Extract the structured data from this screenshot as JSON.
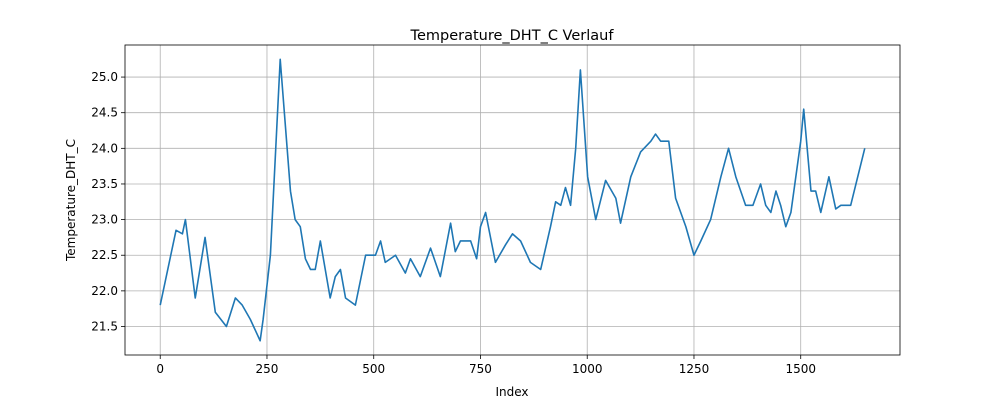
{
  "chart_data": {
    "type": "line",
    "title": "Temperature_DHT_C Verlauf",
    "x_label": "Index",
    "y_label": "Temperature_DHT_C",
    "x": [
      0,
      37,
      52,
      59,
      82,
      105,
      129,
      155,
      176,
      192,
      211,
      234,
      241,
      258,
      281,
      305,
      316,
      328,
      340,
      352,
      363,
      375,
      398,
      410,
      422,
      434,
      457,
      481,
      504,
      516,
      527,
      551,
      574,
      586,
      609,
      633,
      656,
      680,
      691,
      703,
      727,
      741,
      750,
      762,
      785,
      809,
      825,
      844,
      867,
      891,
      914,
      926,
      938,
      949,
      961,
      973,
      984,
      1001,
      1020,
      1043,
      1067,
      1078,
      1102,
      1125,
      1149,
      1160,
      1172,
      1191,
      1207,
      1231,
      1250,
      1266,
      1289,
      1313,
      1331,
      1348,
      1371,
      1388,
      1406,
      1418,
      1430,
      1442,
      1453,
      1465,
      1477,
      1500,
      1507,
      1524,
      1535,
      1547,
      1566,
      1582,
      1594,
      1617,
      1650
    ],
    "series": [
      {
        "name": "Temperature_DHT_C",
        "color": "#1f77b4",
        "values": [
          21.8,
          22.85,
          22.8,
          23.0,
          21.9,
          22.75,
          21.7,
          21.5,
          21.9,
          21.8,
          21.6,
          21.3,
          21.6,
          22.5,
          25.25,
          23.4,
          23.0,
          22.9,
          22.45,
          22.3,
          22.3,
          22.7,
          21.9,
          22.2,
          22.3,
          21.9,
          21.8,
          22.5,
          22.5,
          22.7,
          22.4,
          22.5,
          22.25,
          22.45,
          22.2,
          22.6,
          22.2,
          22.95,
          22.55,
          22.7,
          22.7,
          22.45,
          22.9,
          23.1,
          22.4,
          22.65,
          22.8,
          22.7,
          22.4,
          22.3,
          22.9,
          23.25,
          23.2,
          23.45,
          23.2,
          24.0,
          25.1,
          23.6,
          23.0,
          23.55,
          23.3,
          22.95,
          23.6,
          23.95,
          24.1,
          24.2,
          24.1,
          24.1,
          23.3,
          22.9,
          22.5,
          22.7,
          23.0,
          23.6,
          24.0,
          23.6,
          23.2,
          23.2,
          23.5,
          23.2,
          23.1,
          23.4,
          23.2,
          22.9,
          23.1,
          24.1,
          24.55,
          23.4,
          23.4,
          23.1,
          23.6,
          23.15,
          23.2,
          23.2,
          24.0
        ]
      }
    ],
    "xlim": [
      -82.5,
      1732.5
    ],
    "ylim": [
      21.1,
      25.45
    ],
    "xticks": [
      0,
      250,
      500,
      750,
      1000,
      1250,
      1500
    ],
    "yticks": [
      {
        "value": 21.5,
        "label": "21.5"
      },
      {
        "value": 22.0,
        "label": "22.0"
      },
      {
        "value": 22.5,
        "label": "22.5"
      },
      {
        "value": 23.0,
        "label": "23.0"
      },
      {
        "value": 23.5,
        "label": "23.5"
      },
      {
        "value": 24.0,
        "label": "24.0"
      },
      {
        "value": 24.5,
        "label": "24.5"
      },
      {
        "value": 25.0,
        "label": "25.0"
      }
    ],
    "grid": true
  }
}
